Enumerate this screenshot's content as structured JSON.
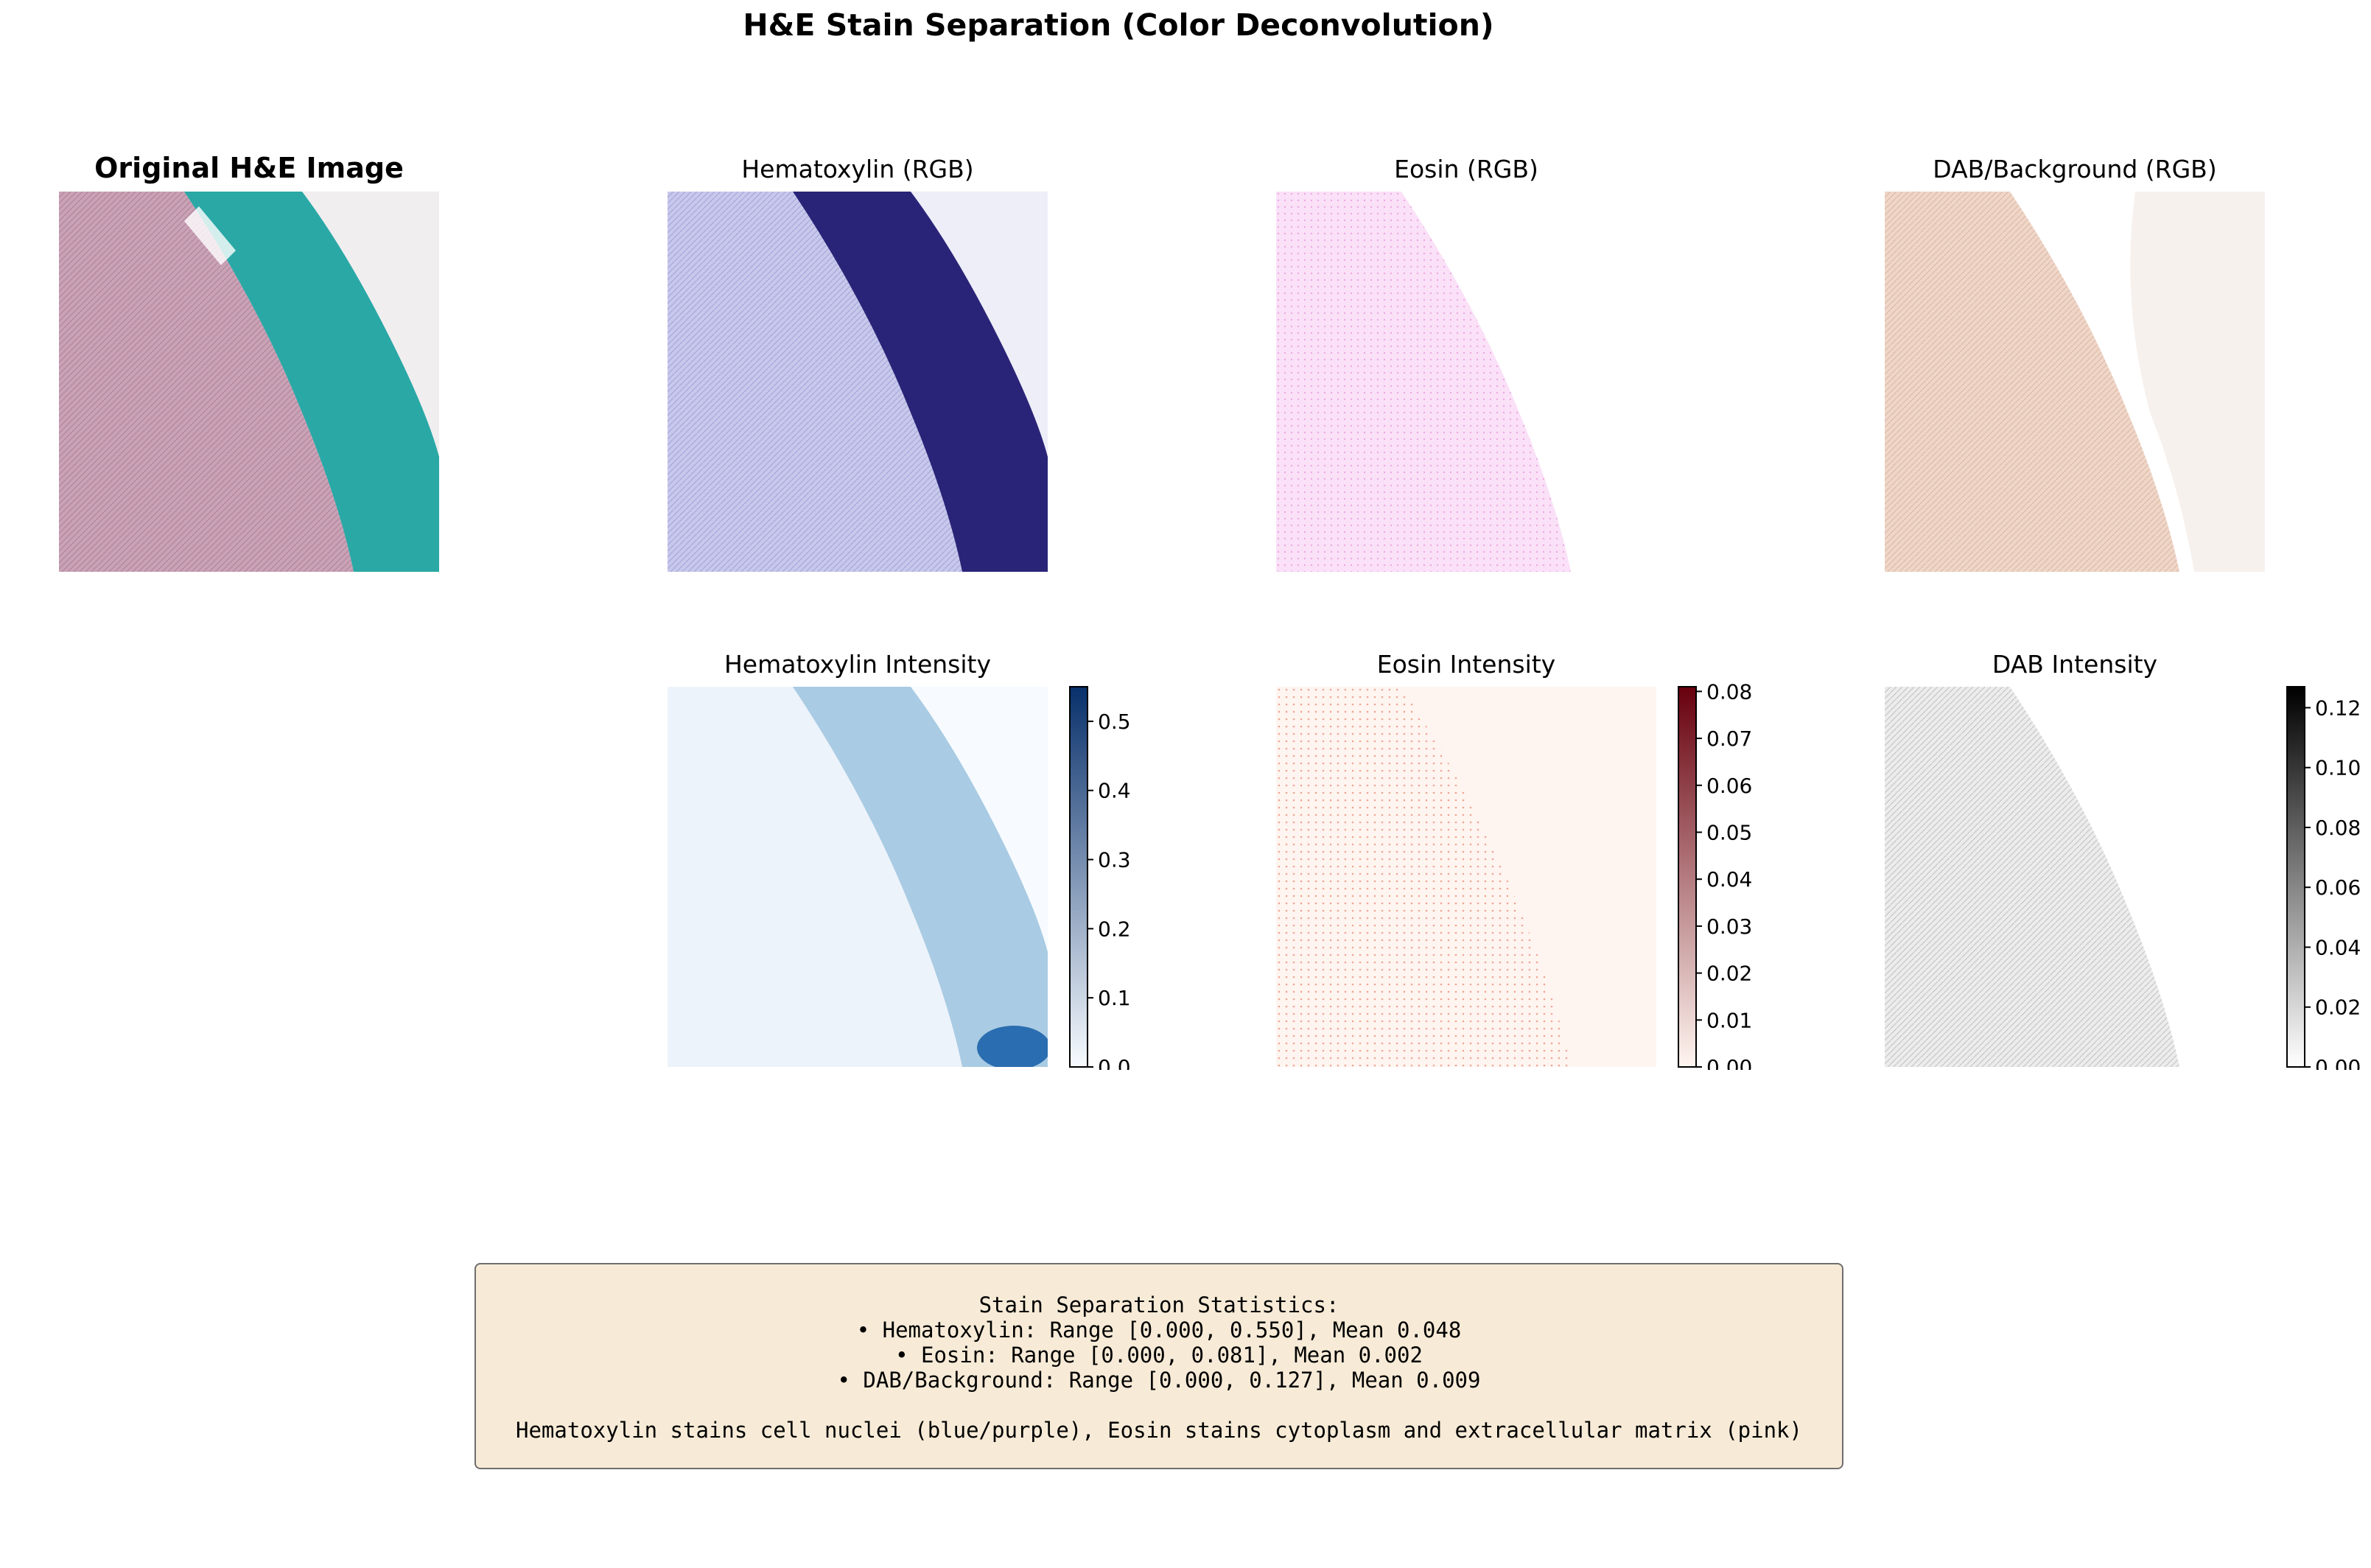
{
  "title": "H&E Stain Separation (Color Deconvolution)",
  "panels": {
    "original": "Original H&E Image",
    "hematoxylin_rgb": "Hematoxylin (RGB)",
    "eosin_rgb": "Eosin (RGB)",
    "dab_rgb": "DAB/Background (RGB)",
    "hematoxylin_intensity": "Hematoxylin Intensity",
    "eosin_intensity": "Eosin Intensity",
    "dab_intensity": "DAB Intensity"
  },
  "colors": {
    "original_tissue": "#c9a2b6",
    "original_band": "#2aa8a6",
    "hema_tissue": "#c8c8ec",
    "hema_band": "#2a2478",
    "eosin_tissue": "#f6c8f0",
    "dab_tissue": "#efd6c8",
    "blues_light": "#f7fbff",
    "blues_dark": "#08306b",
    "reds_light": "#fff5f0",
    "reds_dark": "#67000d",
    "greys_light": "#ffffff",
    "greys_dark": "#000000"
  },
  "chart_data": [
    {
      "type": "heatmap",
      "name": "hematoxylin_intensity",
      "title": "Hematoxylin Intensity",
      "colormap": "Blues",
      "clim": [
        0.0,
        0.55
      ],
      "colorbar_ticks": [
        "0.0",
        "0.1",
        "0.2",
        "0.3",
        "0.4",
        "0.5"
      ],
      "tick_values": [
        0.0,
        0.1,
        0.2,
        0.3,
        0.4,
        0.5
      ]
    },
    {
      "type": "heatmap",
      "name": "eosin_intensity",
      "title": "Eosin Intensity",
      "colormap": "Reds",
      "clim": [
        0.0,
        0.081
      ],
      "colorbar_ticks": [
        "0.00",
        "0.01",
        "0.02",
        "0.03",
        "0.04",
        "0.05",
        "0.06",
        "0.07",
        "0.08"
      ],
      "tick_values": [
        0.0,
        0.01,
        0.02,
        0.03,
        0.04,
        0.05,
        0.06,
        0.07,
        0.08
      ]
    },
    {
      "type": "heatmap",
      "name": "dab_intensity",
      "title": "DAB Intensity",
      "colormap": "Greys",
      "clim": [
        0.0,
        0.127
      ],
      "colorbar_ticks": [
        "0.00",
        "0.02",
        "0.04",
        "0.06",
        "0.08",
        "0.10",
        "0.12"
      ],
      "tick_values": [
        0.0,
        0.02,
        0.04,
        0.06,
        0.08,
        0.1,
        0.12
      ]
    }
  ],
  "stats": {
    "heading": "Stain Separation Statistics:",
    "line1": "• Hematoxylin: Range [0.000, 0.550], Mean 0.048",
    "line2": "• Eosin: Range [0.000, 0.081], Mean 0.002",
    "line3": "• DAB/Background: Range [0.000, 0.127], Mean 0.009",
    "note": "Hematoxylin stains cell nuclei (blue/purple), Eosin stains cytoplasm and extracellular matrix (pink)"
  }
}
